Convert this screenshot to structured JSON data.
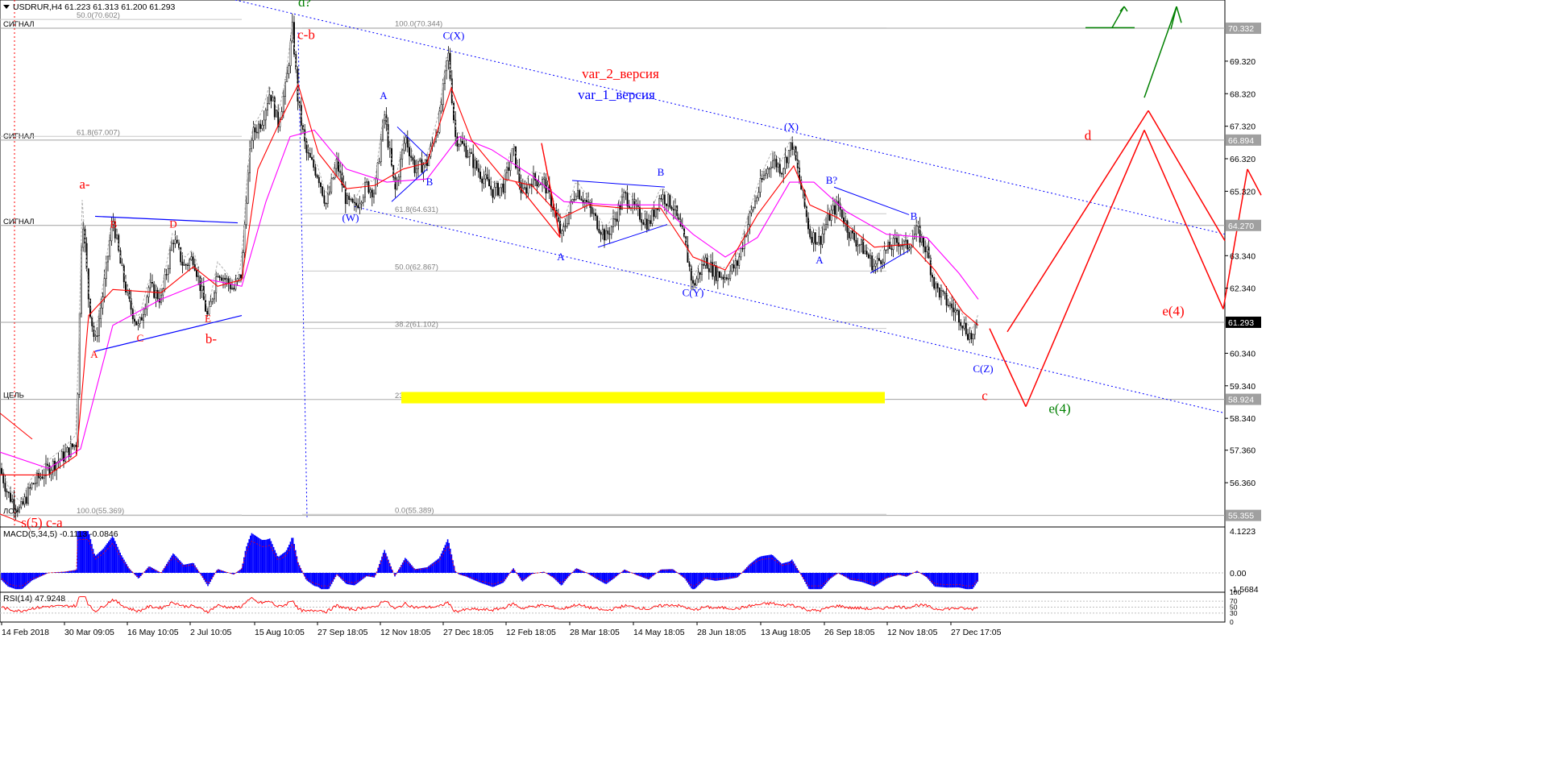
{
  "header": {
    "symbol_line": "USDRUR,H4  61.223 61.313 61.200 61.293",
    "macd_label": "MACD(5,34,5) -0.1113 -0.0846",
    "rsi_label": "RSI(14) 47.9248"
  },
  "colors": {
    "grid_h": "#c0c0c0",
    "bg": "#ffffff",
    "wave_red": "#ff0000",
    "wave_blue": "#0000ff",
    "wave_green": "#008000",
    "ma_red": "#ff0000",
    "ma_magenta": "#ff00ff",
    "target_band": "#ffff00",
    "macd_hist": "#0000ff"
  },
  "chart_data": [
    {
      "type": "candlestick",
      "title": "",
      "symbol": "USDRUR",
      "timeframe": "H4",
      "last_price": 61.293,
      "y_range": [
        55.0,
        71.2
      ],
      "price_axis_ticks": [
        "70.332",
        "69.320",
        "68.320",
        "67.320",
        "66.894",
        "66.320",
        "65.320",
        "64.270",
        "63.340",
        "62.340",
        "61.293",
        "60.340",
        "59.340",
        "58.924",
        "58.340",
        "57.360",
        "56.360",
        "55.355"
      ],
      "highlighted_levels": [
        70.332,
        66.894,
        64.27,
        61.293,
        58.924,
        55.355
      ],
      "time_axis_labels": [
        "14 Feb 2018",
        "30 Mar 09:05",
        "16 May 10:05",
        "2 Jul 10:05",
        "15 Aug 10:05",
        "27 Sep 18:05",
        "12 Nov 18:05",
        "27 Dec 18:05",
        "12 Feb 18:05",
        "28 Mar 18:05",
        "14 May 18:05",
        "28 Jun 18:05",
        "13 Aug 18:05",
        "26 Sep 18:05",
        "12 Nov 18:05",
        "27 Dec 17:05"
      ],
      "level_labels": [
        {
          "text": "СИГНАЛ",
          "price": 70.332
        },
        {
          "text": "СИГНАЛ",
          "price": 66.894
        },
        {
          "text": "СИГНАЛ",
          "price": 64.27
        },
        {
          "text": "ЦЕЛЬ",
          "price": 58.924
        },
        {
          "text": "ЛОУ",
          "price": 55.355
        }
      ],
      "fibo_left": [
        {
          "text": "50.0(70.602)",
          "price": 70.602
        },
        {
          "text": "61.8(67.007)",
          "price": 67.007
        },
        {
          "text": "100.0(55.369)",
          "price": 55.369
        }
      ],
      "fibo_right": [
        {
          "text": "100.0(70.344)",
          "price": 70.344
        },
        {
          "text": "61.8(64.631)",
          "price": 64.631
        },
        {
          "text": "50.0(62.867)",
          "price": 62.867
        },
        {
          "text": "38.2(61.102)",
          "price": 61.102
        },
        {
          "text": "23.6(58.918)",
          "price": 58.918
        },
        {
          "text": "0.0(55.389)",
          "price": 55.389
        }
      ],
      "price_path": [
        {
          "x": 0,
          "p": 56.8
        },
        {
          "x": 10,
          "p": 56.0
        },
        {
          "x": 25,
          "p": 55.5
        },
        {
          "x": 40,
          "p": 56.3
        },
        {
          "x": 60,
          "p": 56.8
        },
        {
          "x": 80,
          "p": 57.2
        },
        {
          "x": 95,
          "p": 57.6
        },
        {
          "x": 102,
          "p": 64.8
        },
        {
          "x": 110,
          "p": 62.0
        },
        {
          "x": 118,
          "p": 60.6
        },
        {
          "x": 128,
          "p": 62.2
        },
        {
          "x": 140,
          "p": 64.5
        },
        {
          "x": 150,
          "p": 63.0
        },
        {
          "x": 160,
          "p": 61.9
        },
        {
          "x": 172,
          "p": 61.1
        },
        {
          "x": 185,
          "p": 62.4
        },
        {
          "x": 200,
          "p": 62.0
        },
        {
          "x": 215,
          "p": 63.9
        },
        {
          "x": 228,
          "p": 63.0
        },
        {
          "x": 240,
          "p": 63.3
        },
        {
          "x": 258,
          "p": 61.4
        },
        {
          "x": 270,
          "p": 62.9
        },
        {
          "x": 290,
          "p": 62.3
        },
        {
          "x": 300,
          "p": 62.8
        },
        {
          "x": 305,
          "p": 65.0
        },
        {
          "x": 312,
          "p": 67.0
        },
        {
          "x": 325,
          "p": 67.5
        },
        {
          "x": 335,
          "p": 68.4
        },
        {
          "x": 345,
          "p": 67.4
        },
        {
          "x": 355,
          "p": 68.6
        },
        {
          "x": 363,
          "p": 70.35
        },
        {
          "x": 370,
          "p": 68.0
        },
        {
          "x": 380,
          "p": 66.5
        },
        {
          "x": 395,
          "p": 65.8
        },
        {
          "x": 405,
          "p": 64.9
        },
        {
          "x": 418,
          "p": 66.2
        },
        {
          "x": 430,
          "p": 65.0
        },
        {
          "x": 440,
          "p": 64.8
        },
        {
          "x": 455,
          "p": 65.5
        },
        {
          "x": 465,
          "p": 65.3
        },
        {
          "x": 477,
          "p": 67.7
        },
        {
          "x": 490,
          "p": 65.3
        },
        {
          "x": 503,
          "p": 67.0
        },
        {
          "x": 515,
          "p": 66.0
        },
        {
          "x": 530,
          "p": 66.2
        },
        {
          "x": 545,
          "p": 67.5
        },
        {
          "x": 556,
          "p": 69.6
        },
        {
          "x": 565,
          "p": 67.0
        },
        {
          "x": 578,
          "p": 66.6
        },
        {
          "x": 595,
          "p": 65.9
        },
        {
          "x": 612,
          "p": 65.3
        },
        {
          "x": 625,
          "p": 65.5
        },
        {
          "x": 637,
          "p": 66.6
        },
        {
          "x": 648,
          "p": 65.2
        },
        {
          "x": 660,
          "p": 65.7
        },
        {
          "x": 675,
          "p": 65.6
        },
        {
          "x": 687,
          "p": 64.8
        },
        {
          "x": 697,
          "p": 63.9
        },
        {
          "x": 705,
          "p": 64.6
        },
        {
          "x": 715,
          "p": 65.4
        },
        {
          "x": 727,
          "p": 65.0
        },
        {
          "x": 740,
          "p": 64.4
        },
        {
          "x": 752,
          "p": 63.9
        },
        {
          "x": 762,
          "p": 64.4
        },
        {
          "x": 775,
          "p": 65.2
        },
        {
          "x": 790,
          "p": 64.7
        },
        {
          "x": 805,
          "p": 64.3
        },
        {
          "x": 820,
          "p": 65.2
        },
        {
          "x": 835,
          "p": 64.9
        },
        {
          "x": 850,
          "p": 63.7
        },
        {
          "x": 860,
          "p": 62.4
        },
        {
          "x": 875,
          "p": 63.2
        },
        {
          "x": 888,
          "p": 62.8
        },
        {
          "x": 900,
          "p": 62.7
        },
        {
          "x": 915,
          "p": 63.1
        },
        {
          "x": 930,
          "p": 64.5
        },
        {
          "x": 945,
          "p": 65.6
        },
        {
          "x": 958,
          "p": 66.3
        },
        {
          "x": 970,
          "p": 66.0
        },
        {
          "x": 983,
          "p": 66.8
        },
        {
          "x": 995,
          "p": 65.3
        },
        {
          "x": 1005,
          "p": 64.0
        },
        {
          "x": 1017,
          "p": 63.8
        },
        {
          "x": 1030,
          "p": 64.6
        },
        {
          "x": 1040,
          "p": 64.9
        },
        {
          "x": 1055,
          "p": 64.0
        },
        {
          "x": 1070,
          "p": 63.6
        },
        {
          "x": 1085,
          "p": 63.0
        },
        {
          "x": 1100,
          "p": 63.5
        },
        {
          "x": 1115,
          "p": 63.8
        },
        {
          "x": 1125,
          "p": 63.6
        },
        {
          "x": 1138,
          "p": 64.1
        },
        {
          "x": 1150,
          "p": 63.5
        },
        {
          "x": 1160,
          "p": 62.4
        },
        {
          "x": 1175,
          "p": 61.9
        },
        {
          "x": 1190,
          "p": 61.5
        },
        {
          "x": 1200,
          "p": 61.0
        },
        {
          "x": 1207,
          "p": 60.8
        },
        {
          "x": 1214,
          "p": 61.3
        }
      ],
      "ma_fast": [
        {
          "x": 0,
          "p": 56.6
        },
        {
          "x": 60,
          "p": 56.6
        },
        {
          "x": 95,
          "p": 57.2
        },
        {
          "x": 110,
          "p": 61.5
        },
        {
          "x": 140,
          "p": 62.3
        },
        {
          "x": 200,
          "p": 62.2
        },
        {
          "x": 240,
          "p": 63.0
        },
        {
          "x": 270,
          "p": 62.4
        },
        {
          "x": 300,
          "p": 62.6
        },
        {
          "x": 320,
          "p": 66.0
        },
        {
          "x": 350,
          "p": 67.6
        },
        {
          "x": 370,
          "p": 68.6
        },
        {
          "x": 395,
          "p": 66.5
        },
        {
          "x": 430,
          "p": 65.4
        },
        {
          "x": 465,
          "p": 65.5
        },
        {
          "x": 500,
          "p": 66.0
        },
        {
          "x": 530,
          "p": 66.2
        },
        {
          "x": 560,
          "p": 68.5
        },
        {
          "x": 585,
          "p": 66.9
        },
        {
          "x": 625,
          "p": 65.7
        },
        {
          "x": 660,
          "p": 65.5
        },
        {
          "x": 697,
          "p": 64.5
        },
        {
          "x": 730,
          "p": 64.9
        },
        {
          "x": 775,
          "p": 64.8
        },
        {
          "x": 820,
          "p": 64.8
        },
        {
          "x": 860,
          "p": 63.3
        },
        {
          "x": 900,
          "p": 62.9
        },
        {
          "x": 940,
          "p": 64.6
        },
        {
          "x": 985,
          "p": 66.1
        },
        {
          "x": 1005,
          "p": 64.9
        },
        {
          "x": 1040,
          "p": 64.5
        },
        {
          "x": 1085,
          "p": 63.6
        },
        {
          "x": 1130,
          "p": 63.7
        },
        {
          "x": 1160,
          "p": 62.9
        },
        {
          "x": 1195,
          "p": 61.6
        },
        {
          "x": 1214,
          "p": 61.2
        }
      ],
      "ma_slow": [
        {
          "x": 0,
          "p": 57.3
        },
        {
          "x": 60,
          "p": 56.8
        },
        {
          "x": 100,
          "p": 57.4
        },
        {
          "x": 140,
          "p": 61.2
        },
        {
          "x": 200,
          "p": 62.0
        },
        {
          "x": 260,
          "p": 62.6
        },
        {
          "x": 300,
          "p": 62.4
        },
        {
          "x": 330,
          "p": 65.0
        },
        {
          "x": 360,
          "p": 67.0
        },
        {
          "x": 390,
          "p": 67.2
        },
        {
          "x": 430,
          "p": 66.0
        },
        {
          "x": 480,
          "p": 65.6
        },
        {
          "x": 530,
          "p": 65.7
        },
        {
          "x": 570,
          "p": 67.0
        },
        {
          "x": 610,
          "p": 66.6
        },
        {
          "x": 660,
          "p": 65.8
        },
        {
          "x": 700,
          "p": 65.0
        },
        {
          "x": 760,
          "p": 64.9
        },
        {
          "x": 820,
          "p": 64.9
        },
        {
          "x": 860,
          "p": 64.0
        },
        {
          "x": 900,
          "p": 63.3
        },
        {
          "x": 940,
          "p": 63.9
        },
        {
          "x": 980,
          "p": 65.6
        },
        {
          "x": 1010,
          "p": 65.6
        },
        {
          "x": 1050,
          "p": 64.7
        },
        {
          "x": 1100,
          "p": 64.0
        },
        {
          "x": 1150,
          "p": 63.9
        },
        {
          "x": 1190,
          "p": 62.8
        },
        {
          "x": 1214,
          "p": 62.0
        }
      ],
      "wave_labels_red": [
        {
          "text": "a-",
          "x": 105,
          "p": 65.4
        },
        {
          "text": "b-",
          "x": 262,
          "p": 60.65
        },
        {
          "text": "c-b",
          "x": 380,
          "p": 70.0
        },
        {
          "text": "var_2_версия",
          "x": 770,
          "p": 68.8
        },
        {
          "text": "d",
          "x": 1350,
          "p": 66.9
        },
        {
          "text": "c",
          "x": 1222,
          "p": 58.9
        },
        {
          "text": "e(4)",
          "x": 1456,
          "p": 61.5
        },
        {
          "text": "s(5) c-a",
          "x": 52,
          "p": 55.0
        }
      ],
      "small_labels_red": [
        {
          "text": "B",
          "x": 141,
          "p": 64.2
        },
        {
          "text": "D",
          "x": 215,
          "p": 64.2
        },
        {
          "text": "E",
          "x": 258,
          "p": 61.3
        },
        {
          "text": "C",
          "x": 174,
          "p": 60.7
        },
        {
          "text": "A",
          "x": 117,
          "p": 60.2
        }
      ],
      "wave_labels_blue": [
        {
          "text": "var_1_версия",
          "x": 765,
          "p": 68.15
        },
        {
          "text": "C(X)",
          "x": 563,
          "p": 70.0
        },
        {
          "text": "(W)",
          "x": 435,
          "p": 64.4
        },
        {
          "text": "(X)",
          "x": 982,
          "p": 67.2
        },
        {
          "text": "C(Y)",
          "x": 860,
          "p": 62.1
        },
        {
          "text": "B?",
          "x": 1032,
          "p": 65.55
        },
        {
          "text": "B",
          "x": 1134,
          "p": 64.45
        },
        {
          "text": "A",
          "x": 1017,
          "p": 63.1
        },
        {
          "text": "C(Z)",
          "x": 1220,
          "p": 59.75
        },
        {
          "text": "A",
          "x": 476,
          "p": 68.15
        },
        {
          "text": "B",
          "x": 533,
          "p": 65.5
        },
        {
          "text": "A",
          "x": 696,
          "p": 63.2
        },
        {
          "text": "B",
          "x": 820,
          "p": 65.8
        }
      ],
      "wave_labels_green": [
        {
          "text": "d?",
          "x": 378,
          "p": 71.0
        },
        {
          "text": "e(4)",
          "x": 1315,
          "p": 58.5
        }
      ]
    },
    {
      "type": "histogram",
      "title": "MACD(5,34,5) -0.1113 -0.0846",
      "axis_ticks": [
        "4.1223",
        "0.00",
        "-1.5684"
      ],
      "y_range": [
        -1.9,
        4.5
      ]
    },
    {
      "type": "line",
      "title": "RSI(14) 47.9248",
      "axis_ticks": [
        "100",
        "70",
        "50",
        "30",
        "0"
      ],
      "y_range": [
        0,
        100
      ]
    }
  ]
}
